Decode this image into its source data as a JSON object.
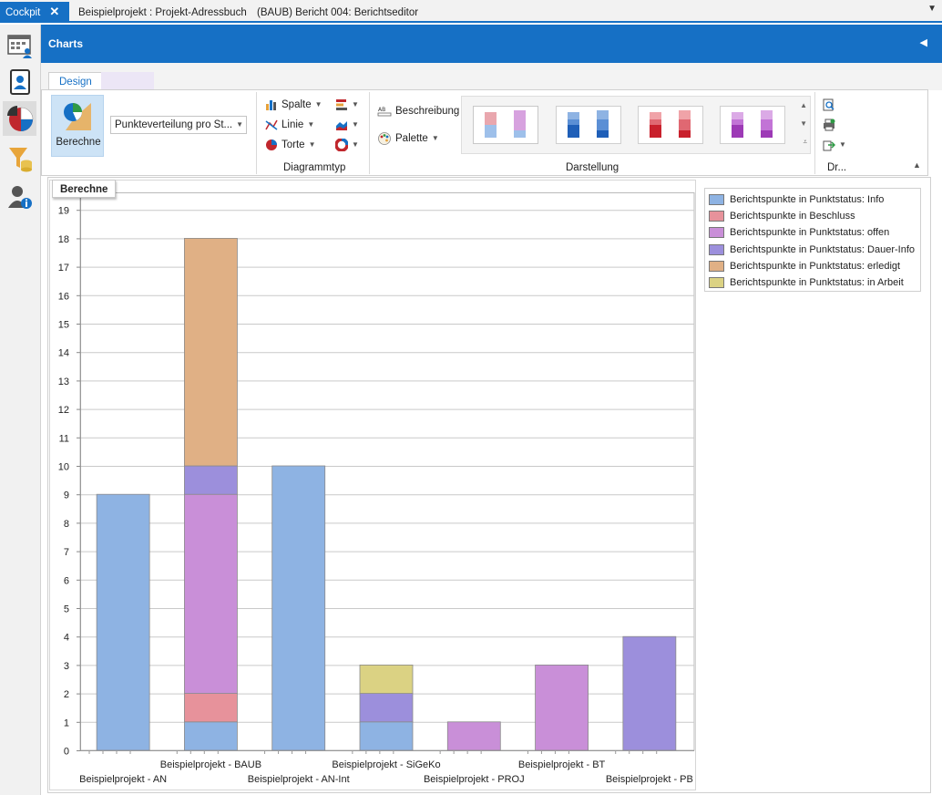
{
  "tabs": [
    {
      "label": "Cockpit",
      "active": true,
      "close": "✕"
    },
    {
      "label": "Beispielprojekt : Projekt-Adressbuch",
      "active": false
    },
    {
      "label": "(BAUB) Bericht 004: Berichtseditor",
      "active": false
    }
  ],
  "nav": {
    "items": [
      "dashboard-icon",
      "contact-card-icon",
      "pie-chart-icon",
      "filter-database-icon",
      "user-info-icon"
    ],
    "active_index": 2
  },
  "header": {
    "title": "Charts",
    "collapse_icon": "chevron-left-icon"
  },
  "ribbon": {
    "tabs": [
      "Design"
    ],
    "berechne_label": "Berechne",
    "chart_select_value": "Punkteverteilung pro St...",
    "type_buttons": {
      "column": "Spalte",
      "line": "Linie",
      "pie": "Torte"
    },
    "group_diagrammtyp": "Diagrammtyp",
    "beschreibung_label": "Beschreibung",
    "palette_label": "Palette",
    "group_darstellung": "Darstellung",
    "group_dr": "Dr..."
  },
  "tooltip": "Berechne",
  "colors": {
    "accent": "#1670c5",
    "info": "#8eb3e3",
    "beschluss": "#e7929b",
    "offen": "#c98fd8",
    "dauer": "#9c8fdc",
    "erledigt": "#e0b085",
    "arbeit": "#dbd283"
  },
  "chart_data": {
    "type": "bar",
    "stacked": true,
    "categories": [
      "Beispielprojekt - AN",
      "Beispielprojekt - BAUB",
      "Beispielprojekt - AN-Int",
      "Beispielprojekt - SiGeKo",
      "Beispielprojekt - PROJ",
      "Beispielprojekt - BT",
      "Beispielprojekt - PB"
    ],
    "series": [
      {
        "name": "Berichtspunkte in Punktstatus: Info",
        "color": "#8eb3e3",
        "values": [
          9,
          1,
          10,
          1,
          0,
          0,
          0
        ]
      },
      {
        "name": "Berichtspunkte in Beschluss",
        "color": "#e7929b",
        "values": [
          0,
          1,
          0,
          0,
          0,
          0,
          0
        ]
      },
      {
        "name": "Berichtspunkte in Punktstatus: offen",
        "color": "#c98fd8",
        "values": [
          0,
          7,
          0,
          0,
          1,
          3,
          0
        ]
      },
      {
        "name": "Berichtspunkte in Punktstatus: Dauer-Info",
        "color": "#9c8fdc",
        "values": [
          0,
          1,
          0,
          1,
          0,
          0,
          4
        ]
      },
      {
        "name": "Berichtspunkte in Punktstatus: erledigt",
        "color": "#e0b085",
        "values": [
          0,
          8,
          0,
          0,
          0,
          0,
          0
        ]
      },
      {
        "name": "Berichtspunkte in Punktstatus: in Arbeit",
        "color": "#dbd283",
        "values": [
          0,
          0,
          0,
          1,
          0,
          0,
          0
        ]
      }
    ],
    "yticks": [
      "0",
      "1",
      "2",
      "3",
      "4",
      "5",
      "6",
      "7",
      "8",
      "9",
      "10",
      "11",
      "12",
      "13",
      "14",
      "15",
      "16",
      "17",
      "18",
      "19"
    ],
    "ylim": [
      0,
      19.6
    ],
    "grid": true,
    "legend": "right"
  }
}
